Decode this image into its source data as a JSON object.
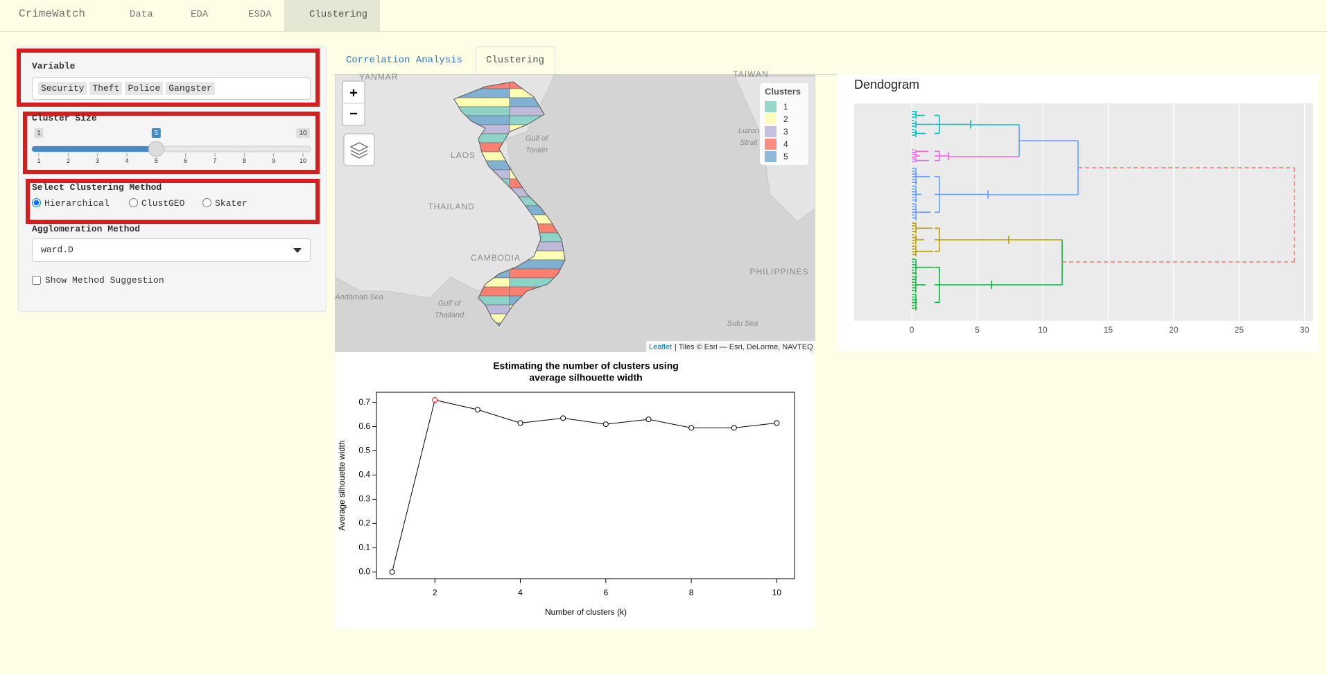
{
  "navbar": {
    "brand": "CrimeWatch",
    "items": [
      "Data",
      "EDA",
      "ESDA",
      "Clustering"
    ],
    "active": 3
  },
  "sidebar": {
    "variable_label": "Variable",
    "variables": [
      "Security",
      "Theft",
      "Police",
      "Gangster"
    ],
    "cluster_size_label": "Cluster Size",
    "slider": {
      "min": 1,
      "max": 10,
      "value": 5,
      "ticks": [
        1,
        2,
        3,
        4,
        5,
        6,
        7,
        8,
        9,
        10
      ]
    },
    "method_label": "Select Clustering Method",
    "methods": [
      "Hierarchical",
      "ClustGEO",
      "Skater"
    ],
    "selected_method": 0,
    "agglomeration_label": "Agglomeration Method",
    "agglomeration_value": "ward.D",
    "suggestion_label": "Show Method Suggestion"
  },
  "tabs": {
    "items": [
      "Correlation Analysis",
      "Clustering"
    ],
    "active": 1
  },
  "map": {
    "labels": [
      "YANMAR",
      "LAOS",
      "THAILAND",
      "CAMBODIA",
      "Gulf of",
      "Tonkin",
      "Gulf of",
      "Thailand",
      "Andaman Sea",
      "PHILIPPINES",
      "Sulu Sea",
      "Luzon",
      "Strait",
      "TAIWAN"
    ],
    "zoom_in": "+",
    "zoom_out": "−",
    "legend_title": "Clusters",
    "legend": [
      {
        "name": "1",
        "color": "#8dd3c7"
      },
      {
        "name": "2",
        "color": "#ffffb3"
      },
      {
        "name": "3",
        "color": "#bebada"
      },
      {
        "name": "4",
        "color": "#fb8072"
      },
      {
        "name": "5",
        "color": "#80b1d3"
      }
    ],
    "attribution_link": "Leaflet",
    "attribution": "| Tiles © Esri — Esri, DeLorme, NAVTEQ"
  },
  "chart_data": [
    {
      "type": "line",
      "title": [
        "Estimating the number of clusters using",
        "average silhouette width"
      ],
      "x": [
        1,
        2,
        3,
        4,
        5,
        6,
        7,
        8,
        9,
        10
      ],
      "values": [
        0.0,
        0.71,
        0.67,
        0.615,
        0.635,
        0.61,
        0.63,
        0.595,
        0.595,
        0.615
      ],
      "color": "#000000",
      "highlight_index": 1,
      "highlight_color": "#ff0000",
      "xlabel": "Number of clusters (k)",
      "ylabel": "Average silhouette width",
      "xlim": [
        0.634,
        10.415
      ],
      "ylim": [
        -0.028,
        0.742
      ],
      "xticks": [
        2,
        4,
        6,
        8,
        10
      ],
      "yticks": [
        {
          "value": 0,
          "label": "0.0"
        },
        0.1,
        0.2,
        0.3,
        0.4,
        0.5,
        0.6,
        0.7
      ]
    },
    {
      "type": "dendrogram",
      "title": "Dendogram",
      "xlim": [
        -4.4,
        30.65
      ],
      "xticks": [
        0,
        5,
        10,
        15,
        20,
        25,
        30
      ],
      "grid": true
    }
  ]
}
